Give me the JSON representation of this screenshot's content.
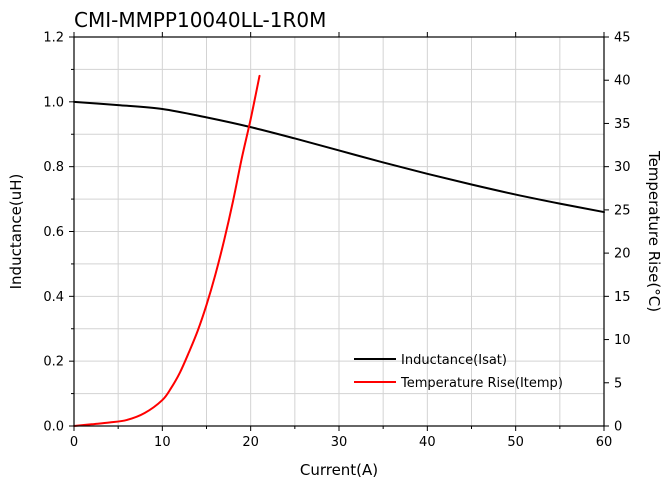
{
  "chart_data": {
    "type": "line",
    "title": "CMI-MMPP10040LL-1R0M",
    "xlabel": "Current(A)",
    "ylabel": "Inductance(uH)",
    "y2label": "Temperature Rise(°C)",
    "xlim": [
      0,
      60
    ],
    "ylim": [
      0,
      1.2
    ],
    "y2lim": [
      0,
      45
    ],
    "x_ticks": [
      "0",
      "10",
      "20",
      "30",
      "40",
      "50",
      "60"
    ],
    "y_ticks": [
      "0.0",
      "0.2",
      "0.4",
      "0.6",
      "0.8",
      "1.0",
      "1.2"
    ],
    "y2_ticks": [
      "0",
      "5",
      "10",
      "15",
      "20",
      "25",
      "30",
      "35",
      "40",
      "45"
    ],
    "grid": true,
    "legend_position": "bottom-right",
    "series": [
      {
        "name": "Inductance(Isat)",
        "axis": "left",
        "color": "#000000",
        "x": [
          0,
          5,
          10,
          15,
          20,
          25,
          30,
          35,
          40,
          45,
          50,
          55,
          60
        ],
        "y": [
          1.0,
          0.99,
          0.978,
          0.952,
          0.922,
          0.887,
          0.85,
          0.813,
          0.778,
          0.745,
          0.714,
          0.686,
          0.66
        ]
      },
      {
        "name": "Temperature Rise(Itemp)",
        "axis": "right",
        "color": "#ff0000",
        "x": [
          0,
          2,
          4,
          6,
          8,
          10,
          11,
          12,
          13,
          14,
          15,
          16,
          17,
          18,
          19,
          20,
          21
        ],
        "y": [
          0,
          0.2,
          0.4,
          0.7,
          1.5,
          3.0,
          4.4,
          6.2,
          8.5,
          11.0,
          14.0,
          17.5,
          21.5,
          26.0,
          31.0,
          35.5,
          40.5
        ]
      }
    ]
  }
}
